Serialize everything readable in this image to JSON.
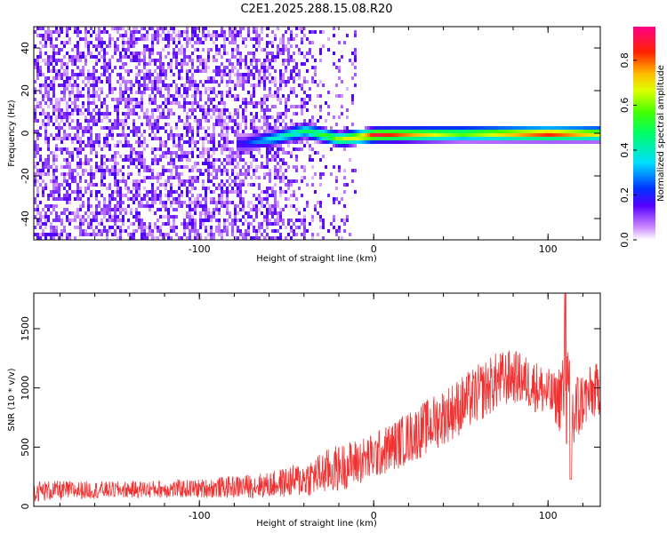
{
  "title": "C2E1.2025.288.15.08.R20",
  "chart_data": [
    {
      "type": "heatmap",
      "xlabel": "Height of straight line (km)",
      "ylabel": "Frequency (Hz)",
      "xlim": [
        -195,
        130
      ],
      "ylim": [
        -50,
        50
      ],
      "x_ticks": [
        -100,
        0,
        100
      ],
      "y_ticks": [
        -40,
        -20,
        0,
        20,
        40
      ],
      "colorbar": {
        "label": "Normalized spectral amplitude",
        "range": [
          0,
          0.95
        ],
        "ticks": [
          0.0,
          0.2,
          0.4,
          0.6,
          0.8
        ]
      },
      "description_points": [
        {
          "height_km": -190,
          "frequency_hz": 0,
          "amplitude": 0.05
        },
        {
          "height_km": -75,
          "frequency_hz": -4,
          "amplitude": 0.15
        },
        {
          "height_km": -60,
          "frequency_hz": -2,
          "amplitude": 0.35
        },
        {
          "height_km": -40,
          "frequency_hz": 2,
          "amplitude": 0.45
        },
        {
          "height_km": -20,
          "frequency_hz": -2,
          "amplitude": 0.6
        },
        {
          "height_km": 0,
          "frequency_hz": 0,
          "amplitude": 0.85
        },
        {
          "height_km": 50,
          "frequency_hz": 0.5,
          "amplitude": 0.6
        },
        {
          "height_km": 100,
          "frequency_hz": 0.5,
          "amplitude": 0.9
        },
        {
          "height_km": 130,
          "frequency_hz": 0.5,
          "amplitude": 0.7
        }
      ]
    },
    {
      "type": "line",
      "xlabel": "Height of straight line (km)",
      "ylabel": "SNR (10 * v/v)",
      "xlim": [
        -195,
        130
      ],
      "ylim": [
        0,
        1800
      ],
      "x_ticks": [
        -100,
        0,
        100
      ],
      "y_ticks": [
        0,
        500,
        1000,
        1500
      ],
      "color": "#f03232",
      "envelope": {
        "x": [
          -195,
          -150,
          -100,
          -60,
          -40,
          -25,
          0,
          25,
          50,
          70,
          80,
          95,
          105,
          110,
          113,
          120,
          130
        ],
        "center": [
          130,
          140,
          150,
          180,
          230,
          300,
          420,
          620,
          850,
          1050,
          1100,
          1000,
          900,
          1000,
          700,
          900,
          1000
        ],
        "spread": [
          90,
          70,
          80,
          110,
          150,
          200,
          200,
          230,
          250,
          250,
          230,
          220,
          220,
          500,
          500,
          250,
          230
        ]
      }
    }
  ]
}
